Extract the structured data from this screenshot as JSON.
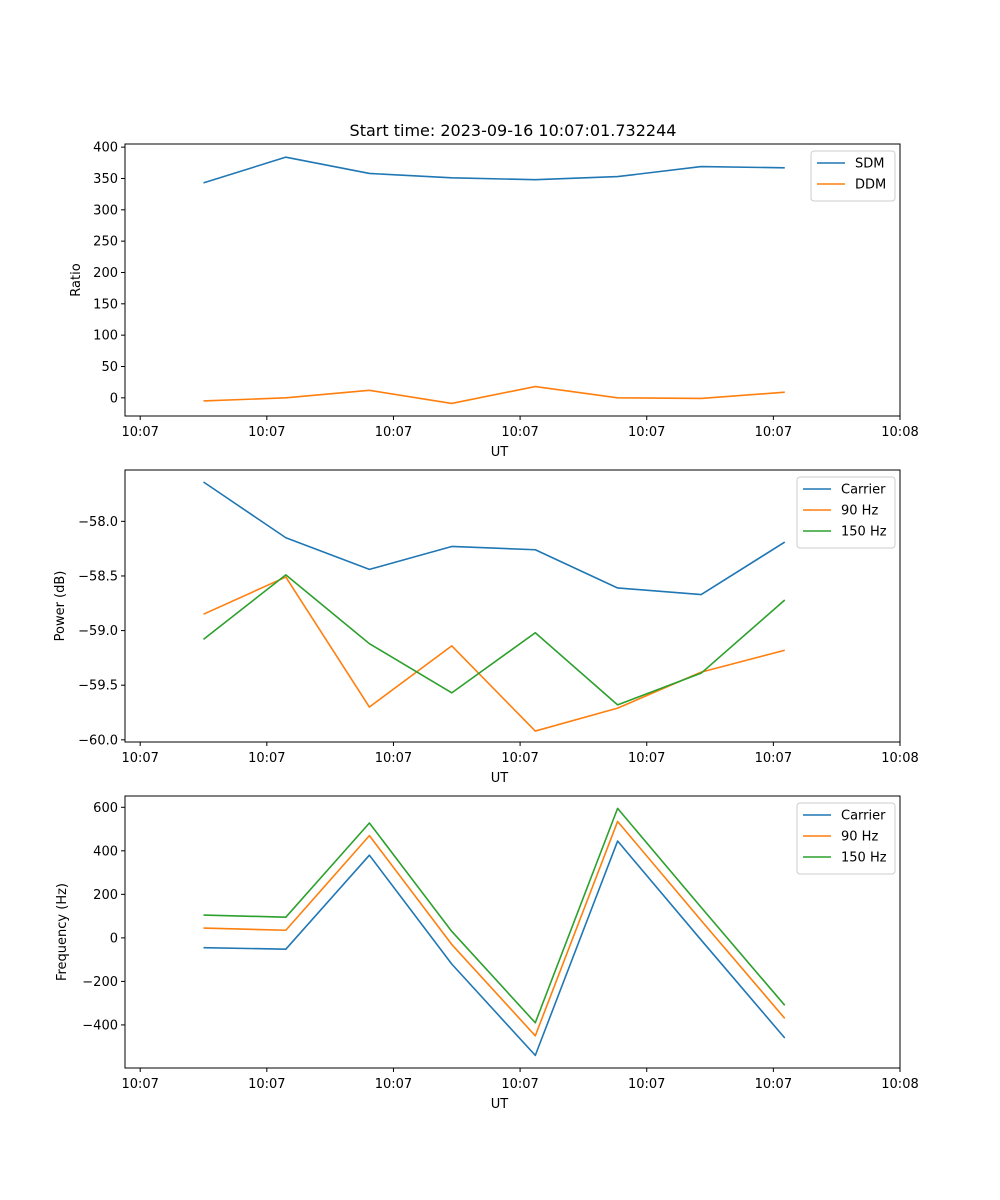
{
  "title": "Start time: 2023-09-16 10:07:01.732244",
  "colors": {
    "blue": "#1f77b4",
    "orange": "#ff7f0e",
    "green": "#2ca02c"
  },
  "chart_data": [
    {
      "type": "line",
      "xlabel": "UT",
      "ylabel": "Ratio",
      "x_tick_labels": [
        "10:07",
        "10:07",
        "10:07",
        "10:07",
        "10:07",
        "10:07",
        "10:07"
      ],
      "x_end_tick_label": "10:08",
      "x_ticks": [
        0,
        1,
        2,
        3,
        4,
        5,
        6
      ],
      "x_end_tick": 6,
      "x": [
        0.5,
        1.15,
        1.81,
        2.46,
        3.12,
        3.77,
        4.43,
        5.09
      ],
      "xlim": [
        -0.12,
        6.0
      ],
      "ylim": [
        -29,
        405
      ],
      "yticks": [
        0,
        50,
        100,
        150,
        200,
        250,
        300,
        350,
        400
      ],
      "ytick_labels": [
        "0",
        "50",
        "100",
        "150",
        "200",
        "250",
        "300",
        "350",
        "400"
      ],
      "legend_loc": "upper right",
      "series": [
        {
          "name": "SDM",
          "color": "#1f77b4",
          "values": [
            343,
            384,
            358,
            351,
            348,
            353,
            369,
            367
          ]
        },
        {
          "name": "DDM",
          "color": "#ff7f0e",
          "values": [
            -5,
            0,
            12,
            -9,
            18,
            0,
            -1,
            9
          ]
        }
      ]
    },
    {
      "type": "line",
      "xlabel": "UT",
      "ylabel": "Power (dB)",
      "x_tick_labels": [
        "10:07",
        "10:07",
        "10:07",
        "10:07",
        "10:07",
        "10:07",
        "10:07"
      ],
      "x_end_tick_label": "10:08",
      "x_ticks": [
        0,
        1,
        2,
        3,
        4,
        5,
        6
      ],
      "x_end_tick": 6,
      "x": [
        0.5,
        1.15,
        1.81,
        2.46,
        3.12,
        3.77,
        4.43,
        5.09
      ],
      "xlim": [
        -0.12,
        6.0
      ],
      "ylim": [
        -60.02,
        -57.53
      ],
      "yticks": [
        -60.0,
        -59.5,
        -59.0,
        -58.5,
        -58.0
      ],
      "ytick_labels": [
        "−60.0",
        "−59.5",
        "−59.0",
        "−58.5",
        "−58.0"
      ],
      "legend_loc": "upper right",
      "series": [
        {
          "name": "Carrier",
          "color": "#1f77b4",
          "values": [
            -57.64,
            -58.15,
            -58.44,
            -58.23,
            -58.26,
            -58.61,
            -58.67,
            -58.19
          ]
        },
        {
          "name": "90 Hz",
          "color": "#ff7f0e",
          "values": [
            -58.85,
            -58.51,
            -59.7,
            -59.14,
            -59.92,
            -59.71,
            -59.38,
            -59.18
          ]
        },
        {
          "name": "150 Hz",
          "color": "#2ca02c",
          "values": [
            -59.08,
            -58.49,
            -59.12,
            -59.57,
            -59.02,
            -59.68,
            -59.39,
            -58.72
          ]
        }
      ]
    },
    {
      "type": "line",
      "xlabel": "UT",
      "ylabel": "Frequency (Hz)",
      "x_tick_labels": [
        "10:07",
        "10:07",
        "10:07",
        "10:07",
        "10:07",
        "10:07",
        "10:07"
      ],
      "x_end_tick_label": "10:08",
      "x_ticks": [
        0,
        1,
        2,
        3,
        4,
        5,
        6
      ],
      "x_end_tick": 6,
      "x": [
        0.5,
        1.15,
        1.81,
        2.46,
        3.12,
        3.77,
        4.43,
        5.09
      ],
      "xlim": [
        -0.12,
        6.0
      ],
      "ylim": [
        -598,
        652
      ],
      "yticks": [
        -400,
        -200,
        0,
        200,
        400,
        600
      ],
      "ytick_labels": [
        "−400",
        "−200",
        "0",
        "200",
        "400",
        "600"
      ],
      "legend_loc": "upper right",
      "series": [
        {
          "name": "Carrier",
          "color": "#1f77b4",
          "values": [
            -45,
            -52,
            380,
            -120,
            -540,
            445,
            -10,
            -460
          ]
        },
        {
          "name": "90 Hz",
          "color": "#ff7f0e",
          "values": [
            45,
            35,
            470,
            -30,
            -450,
            535,
            80,
            -370
          ]
        },
        {
          "name": "150 Hz",
          "color": "#2ca02c",
          "values": [
            105,
            95,
            528,
            30,
            -390,
            595,
            140,
            -310
          ]
        }
      ]
    }
  ]
}
